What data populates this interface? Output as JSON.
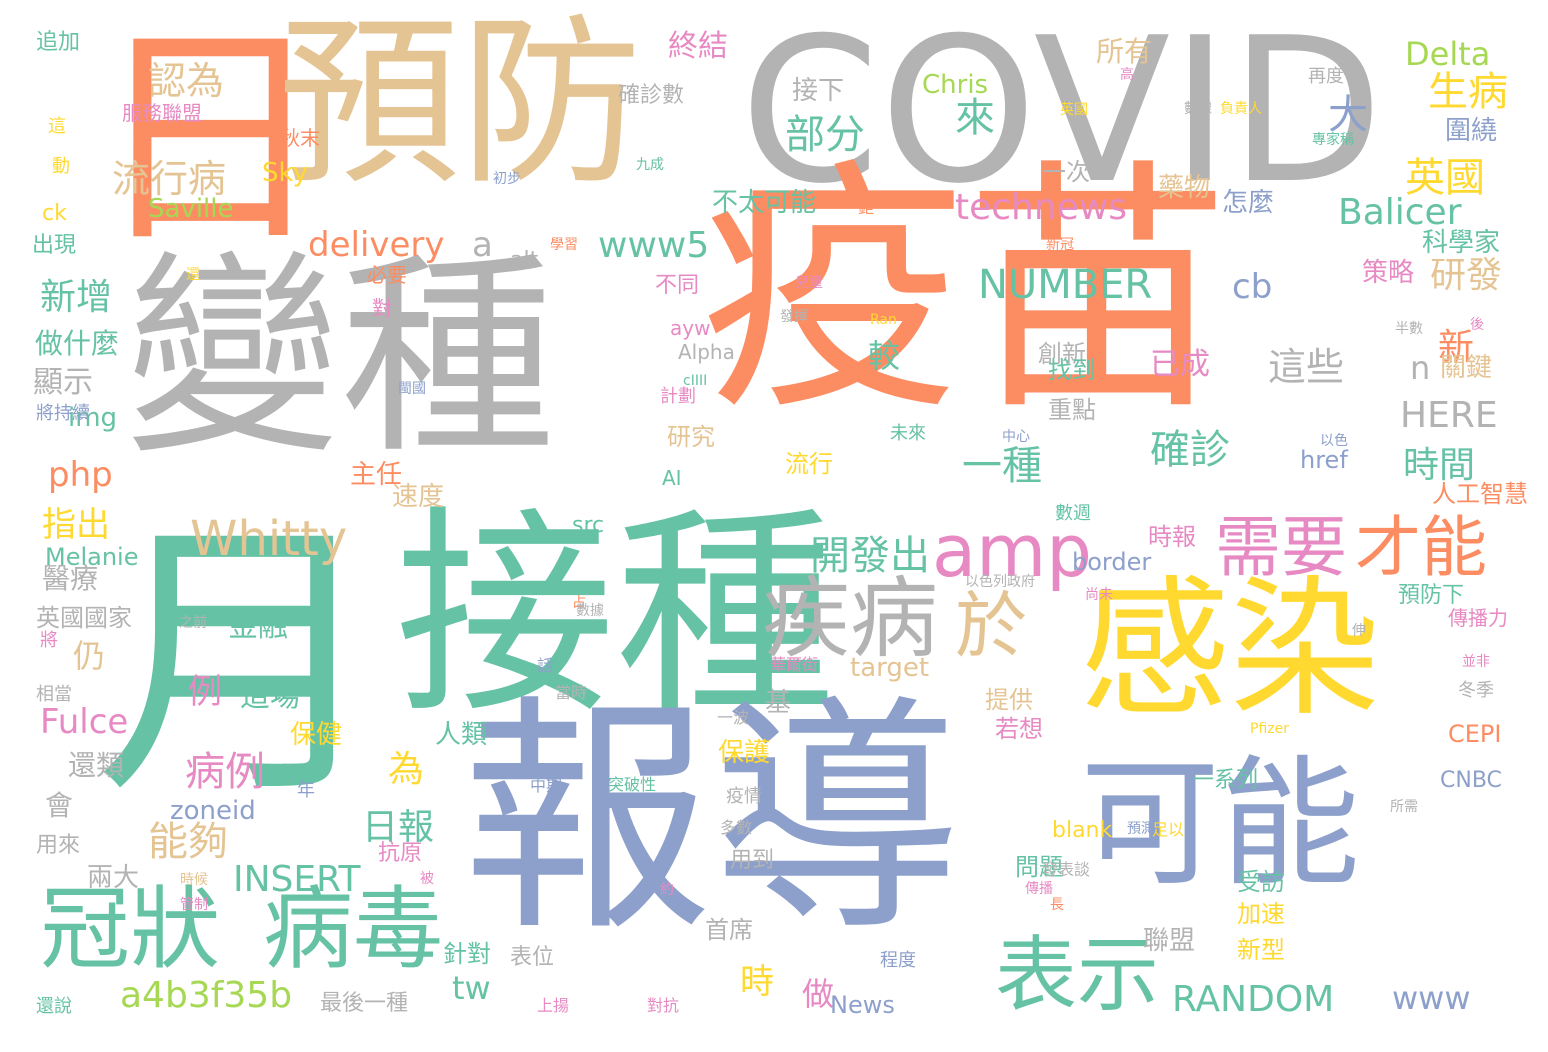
{
  "colors": {
    "orange": "#fc8d62",
    "grey": "#b3b3b3",
    "tan": "#e5c494",
    "green": "#66c2a5",
    "blue": "#8da0cb",
    "yellow": "#ffd92f",
    "pink": "#e78ac3",
    "lime": "#a6d854"
  },
  "words": [
    {
      "text": "日",
      "color": "orange"
    },
    {
      "text": "預防",
      "color": "tan"
    },
    {
      "text": "COVID",
      "color": "grey"
    },
    {
      "text": "變種",
      "color": "grey"
    },
    {
      "text": "疫苗",
      "color": "orange"
    },
    {
      "text": "月",
      "color": "green"
    },
    {
      "text": "接種",
      "color": "green"
    },
    {
      "text": "報導",
      "color": "blue"
    },
    {
      "text": "感染",
      "color": "yellow"
    },
    {
      "text": "可能",
      "color": "blue"
    },
    {
      "text": "冠狀",
      "color": "green"
    },
    {
      "text": "病毒",
      "color": "green"
    },
    {
      "text": "疾病",
      "color": "grey"
    },
    {
      "text": "amp",
      "color": "pink"
    },
    {
      "text": "於",
      "color": "tan"
    },
    {
      "text": "需要",
      "color": "pink"
    },
    {
      "text": "才能",
      "color": "orange"
    },
    {
      "text": "表示",
      "color": "green"
    },
    {
      "text": "Whitty",
      "color": "tan"
    },
    {
      "text": "technews",
      "color": "pink"
    },
    {
      "text": "NUMBER",
      "color": "green"
    },
    {
      "text": "Balicer",
      "color": "green"
    },
    {
      "text": "Delta",
      "color": "lime"
    },
    {
      "text": "部分",
      "color": "green"
    },
    {
      "text": "接下",
      "color": "grey"
    },
    {
      "text": "來",
      "color": "green"
    },
    {
      "text": "大",
      "color": "blue"
    },
    {
      "text": "生病",
      "color": "yellow"
    },
    {
      "text": "英國",
      "color": "yellow"
    },
    {
      "text": "認為",
      "color": "tan"
    },
    {
      "text": "流行病",
      "color": "tan"
    },
    {
      "text": "Saville",
      "color": "lime"
    },
    {
      "text": "Sky",
      "color": "yellow"
    },
    {
      "text": "Chris",
      "color": "lime"
    },
    {
      "text": "www5",
      "color": "green"
    },
    {
      "text": "delivery",
      "color": "orange"
    },
    {
      "text": "a",
      "color": "grey"
    },
    {
      "text": "cb",
      "color": "blue"
    },
    {
      "text": "新增",
      "color": "green"
    },
    {
      "text": "研發",
      "color": "tan"
    },
    {
      "text": "新",
      "color": "orange"
    },
    {
      "text": "這些",
      "color": "grey"
    },
    {
      "text": "n",
      "color": "grey"
    },
    {
      "text": "HERE",
      "color": "grey"
    },
    {
      "text": "確診",
      "color": "green"
    },
    {
      "text": "時間",
      "color": "green"
    },
    {
      "text": "一種",
      "color": "green"
    },
    {
      "text": "開發出",
      "color": "green"
    },
    {
      "text": "php",
      "color": "orange"
    },
    {
      "text": "指出",
      "color": "yellow"
    },
    {
      "text": "醫療",
      "color": "grey"
    },
    {
      "text": "仍",
      "color": "tan"
    },
    {
      "text": "Fulce",
      "color": "pink"
    },
    {
      "text": "例",
      "color": "pink"
    },
    {
      "text": "病例",
      "color": "pink"
    },
    {
      "text": "為",
      "color": "yellow"
    },
    {
      "text": "日報",
      "color": "green"
    },
    {
      "text": "能夠",
      "color": "tan"
    },
    {
      "text": "INSERT",
      "color": "green"
    },
    {
      "text": "a4b3f35b",
      "color": "lime"
    },
    {
      "text": "tw",
      "color": "green"
    },
    {
      "text": "RANDOM",
      "color": "green"
    },
    {
      "text": "www",
      "color": "blue"
    },
    {
      "text": "時",
      "color": "yellow"
    },
    {
      "text": "做",
      "color": "pink"
    },
    {
      "text": "zoneid",
      "color": "blue"
    },
    {
      "text": "會",
      "color": "grey"
    },
    {
      "text": "兩大",
      "color": "grey"
    },
    {
      "text": "金融",
      "color": "green"
    },
    {
      "text": "這場",
      "color": "green"
    },
    {
      "text": "target",
      "color": "tan"
    },
    {
      "text": "CEPI",
      "color": "orange"
    },
    {
      "text": "CNBC",
      "color": "blue"
    },
    {
      "text": "border",
      "color": "blue"
    },
    {
      "text": "href",
      "color": "blue"
    },
    {
      "text": "Melanie",
      "color": "green"
    },
    {
      "text": "顯示",
      "color": "grey"
    },
    {
      "text": "做什麼",
      "color": "green"
    },
    {
      "text": "img",
      "color": "green"
    },
    {
      "text": "已成",
      "color": "pink"
    },
    {
      "text": "關鍵",
      "color": "tan"
    },
    {
      "text": "終結",
      "color": "pink"
    },
    {
      "text": "所有",
      "color": "tan"
    },
    {
      "text": "確診數",
      "color": "grey"
    },
    {
      "text": "不太可能",
      "color": "green"
    },
    {
      "text": "怎麼",
      "color": "blue"
    },
    {
      "text": "科學家",
      "color": "green"
    },
    {
      "text": "策略",
      "color": "pink"
    },
    {
      "text": "藥物",
      "color": "tan"
    },
    {
      "text": "圍繞",
      "color": "blue"
    },
    {
      "text": "一次",
      "color": "grey"
    },
    {
      "text": "服務聯盟",
      "color": "pink"
    },
    {
      "text": "追加",
      "color": "green"
    },
    {
      "text": "秋末",
      "color": "orange"
    },
    {
      "text": "alt",
      "color": "grey"
    },
    {
      "text": "不同",
      "color": "pink"
    },
    {
      "text": "創新",
      "color": "grey"
    },
    {
      "text": "找到",
      "color": "green"
    },
    {
      "text": "重點",
      "color": "grey"
    },
    {
      "text": "較",
      "color": "green"
    },
    {
      "text": "主任",
      "color": "orange"
    },
    {
      "text": "速度",
      "color": "tan"
    },
    {
      "text": "流行",
      "color": "yellow"
    },
    {
      "text": "研究",
      "color": "tan"
    },
    {
      "text": "AI",
      "color": "green"
    },
    {
      "text": "src",
      "color": "green"
    },
    {
      "text": "人工智慧",
      "color": "orange"
    },
    {
      "text": "時報",
      "color": "pink"
    },
    {
      "text": "預防下",
      "color": "green"
    },
    {
      "text": "傳播力",
      "color": "pink"
    },
    {
      "text": "英國國家",
      "color": "grey"
    },
    {
      "text": "保健",
      "color": "yellow"
    },
    {
      "text": "人類",
      "color": "green"
    },
    {
      "text": "提供",
      "color": "tan"
    },
    {
      "text": "若想",
      "color": "pink"
    },
    {
      "text": "基",
      "color": "grey"
    },
    {
      "text": "保護",
      "color": "yellow"
    },
    {
      "text": "還類",
      "color": "grey"
    },
    {
      "text": "一系列",
      "color": "green"
    },
    {
      "text": "blank",
      "color": "yellow"
    },
    {
      "text": "用來",
      "color": "grey"
    },
    {
      "text": "抗原",
      "color": "pink"
    },
    {
      "text": "問題",
      "color": "green"
    },
    {
      "text": "受訪",
      "color": "green"
    },
    {
      "text": "加速",
      "color": "yellow"
    },
    {
      "text": "新型",
      "color": "yellow"
    },
    {
      "text": "聯盟",
      "color": "grey"
    },
    {
      "text": "首席",
      "color": "grey"
    },
    {
      "text": "針對",
      "color": "green"
    },
    {
      "text": "表位",
      "color": "grey"
    },
    {
      "text": "最後一種",
      "color": "grey"
    },
    {
      "text": "News",
      "color": "blue"
    },
    {
      "text": "用到",
      "color": "grey"
    },
    {
      "text": "ck",
      "color": "yellow"
    },
    {
      "text": "出現",
      "color": "green"
    },
    {
      "text": "必要",
      "color": "orange"
    },
    {
      "text": "對",
      "color": "pink"
    },
    {
      "text": "ayw",
      "color": "pink"
    },
    {
      "text": "Alpha",
      "color": "grey"
    },
    {
      "text": "鉅",
      "color": "orange"
    },
    {
      "text": "中期",
      "color": "blue"
    },
    {
      "text": "突破性",
      "color": "green"
    },
    {
      "text": "疫情",
      "color": "grey"
    },
    {
      "text": "程度",
      "color": "blue"
    },
    {
      "text": "對抗",
      "color": "pink"
    },
    {
      "text": "上揚",
      "color": "pink"
    },
    {
      "text": "還說",
      "color": "green"
    },
    {
      "text": "將持續",
      "color": "blue"
    },
    {
      "text": "相當",
      "color": "grey"
    },
    {
      "text": "將",
      "color": "pink"
    },
    {
      "text": "時候",
      "color": "tan"
    },
    {
      "text": "年",
      "color": "blue"
    },
    {
      "text": "Pfizer",
      "color": "yellow"
    },
    {
      "text": "冬季",
      "color": "grey"
    },
    {
      "text": "足以",
      "color": "yellow"
    },
    {
      "text": "華爾街",
      "color": "pink"
    },
    {
      "text": "話",
      "color": "blue"
    },
    {
      "text": "當時",
      "color": "grey"
    },
    {
      "text": "一波",
      "color": "grey"
    },
    {
      "text": "發表談",
      "color": "grey"
    },
    {
      "text": "多數",
      "color": "grey"
    },
    {
      "text": "動",
      "color": "yellow"
    },
    {
      "text": "這",
      "color": "yellow"
    },
    {
      "text": "高",
      "color": "pink"
    },
    {
      "text": "再度",
      "color": "grey"
    },
    {
      "text": "專家稱",
      "color": "green"
    },
    {
      "text": "九成",
      "color": "green"
    },
    {
      "text": "初步",
      "color": "blue"
    },
    {
      "text": "計劃",
      "color": "pink"
    },
    {
      "text": "數週",
      "color": "green"
    },
    {
      "text": "未來",
      "color": "green"
    },
    {
      "text": "中心",
      "color": "blue"
    },
    {
      "text": "以色列政府",
      "color": "grey"
    },
    {
      "text": "以色",
      "color": "blue"
    },
    {
      "text": "兒童",
      "color": "pink"
    },
    {
      "text": "新冠",
      "color": "orange"
    },
    {
      "text": "負責人",
      "color": "yellow"
    },
    {
      "text": "長",
      "color": "orange"
    },
    {
      "text": "預測",
      "color": "blue"
    },
    {
      "text": "尚未",
      "color": "pink"
    },
    {
      "text": "所需",
      "color": "grey"
    },
    {
      "text": "數據",
      "color": "grey"
    },
    {
      "text": "英國",
      "color": "yellow"
    },
    {
      "text": "後",
      "color": "pink"
    },
    {
      "text": "以下",
      "color": "grey"
    },
    {
      "text": "並非",
      "color": "pink"
    },
    {
      "text": "半數",
      "color": "grey"
    },
    {
      "text": "Ran",
      "color": "yellow"
    },
    {
      "text": "cIIII",
      "color": "green"
    },
    {
      "text": "之前",
      "color": "grey"
    },
    {
      "text": "閩國",
      "color": "blue"
    },
    {
      "text": "學習",
      "color": "orange"
    },
    {
      "text": "還",
      "color": "yellow"
    },
    {
      "text": "約",
      "color": "pink"
    },
    {
      "text": "占",
      "color": "orange"
    },
    {
      "text": "被",
      "color": "pink"
    },
    {
      "text": "管制",
      "color": "pink"
    },
    {
      "text": "發揮",
      "color": "grey"
    },
    {
      "text": "伸",
      "color": "grey"
    },
    {
      "text": "傳播",
      "color": "pink"
    },
    {
      "text": "數據",
      "color": "grey"
    },
    {
      "text": "威",
      "color": "orange"
    },
    {
      "text": "將",
      "color": "orange"
    }
  ]
}
